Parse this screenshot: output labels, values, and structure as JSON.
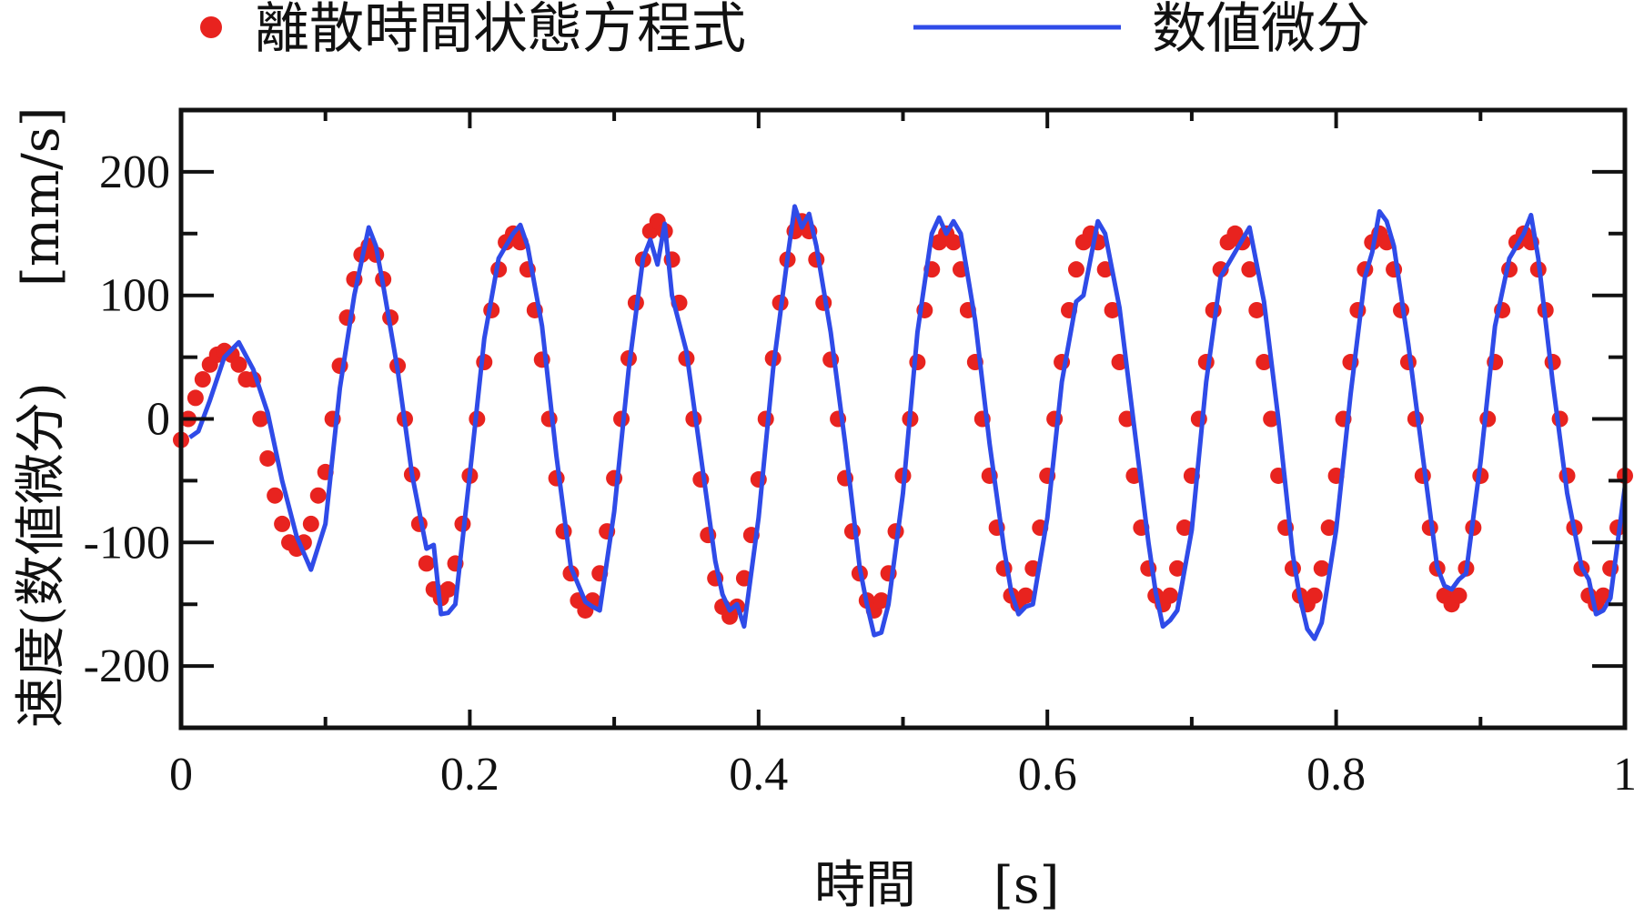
{
  "chart_data": {
    "type": "line",
    "title": "",
    "xlabel": "時間",
    "xunit": "[s]",
    "ylabel": "速度(数値微分)",
    "yunit": "[mm/s]",
    "xlim": [
      0,
      1
    ],
    "ylim": [
      -250,
      250
    ],
    "xticks": [
      0,
      0.2,
      0.4,
      0.6,
      0.8,
      1
    ],
    "xtick_labels": [
      "0",
      "0.2",
      "0.4",
      "0.6",
      "0.8",
      "1"
    ],
    "yticks": [
      -200,
      -100,
      0,
      100,
      200
    ],
    "ytick_labels": [
      "-200",
      "-100",
      "0",
      "100",
      "200"
    ],
    "grid": false,
    "legend_position": "top",
    "series": [
      {
        "name": "離散時間状態方程式",
        "style": "markers",
        "color": "#e8231f",
        "amplitude": [
          55,
          105,
          140,
          145,
          150,
          155,
          160,
          160,
          160,
          155,
          150,
          150,
          150,
          150,
          150,
          150,
          150,
          150,
          150,
          150
        ],
        "x": [],
        "y": []
      },
      {
        "name": "数値微分",
        "style": "line",
        "color": "#2f4be8",
        "x": [
          0.006,
          0.012,
          0.02,
          0.03,
          0.04,
          0.05,
          0.06,
          0.07,
          0.08,
          0.09,
          0.1,
          0.11,
          0.12,
          0.13,
          0.135,
          0.14,
          0.15,
          0.16,
          0.17,
          0.175,
          0.18,
          0.185,
          0.19,
          0.2,
          0.21,
          0.22,
          0.23,
          0.235,
          0.24,
          0.25,
          0.26,
          0.27,
          0.28,
          0.285,
          0.29,
          0.3,
          0.31,
          0.32,
          0.325,
          0.33,
          0.335,
          0.34,
          0.35,
          0.36,
          0.37,
          0.375,
          0.38,
          0.385,
          0.39,
          0.4,
          0.41,
          0.42,
          0.425,
          0.43,
          0.435,
          0.44,
          0.45,
          0.46,
          0.47,
          0.475,
          0.48,
          0.485,
          0.49,
          0.5,
          0.51,
          0.52,
          0.525,
          0.53,
          0.535,
          0.54,
          0.55,
          0.56,
          0.57,
          0.575,
          0.58,
          0.585,
          0.59,
          0.6,
          0.61,
          0.62,
          0.625,
          0.63,
          0.635,
          0.64,
          0.65,
          0.66,
          0.67,
          0.675,
          0.68,
          0.685,
          0.69,
          0.7,
          0.71,
          0.72,
          0.725,
          0.73,
          0.735,
          0.74,
          0.75,
          0.76,
          0.77,
          0.775,
          0.78,
          0.785,
          0.79,
          0.8,
          0.81,
          0.82,
          0.825,
          0.83,
          0.835,
          0.84,
          0.85,
          0.86,
          0.87,
          0.875,
          0.88,
          0.885,
          0.89,
          0.9,
          0.91,
          0.92,
          0.925,
          0.93,
          0.935,
          0.94,
          0.95,
          0.96,
          0.97,
          0.975,
          0.98,
          0.985,
          0.99,
          1.0
        ],
        "y": [
          -15,
          -10,
          15,
          50,
          62,
          40,
          5,
          -50,
          -95,
          -122,
          -85,
          25,
          100,
          155,
          140,
          108,
          40,
          -45,
          -105,
          -102,
          -158,
          -157,
          -150,
          -45,
          65,
          130,
          150,
          157,
          140,
          75,
          -30,
          -120,
          -148,
          -152,
          -155,
          -75,
          40,
          130,
          145,
          125,
          158,
          100,
          55,
          -30,
          -115,
          -142,
          -155,
          -150,
          -168,
          -80,
          40,
          130,
          172,
          155,
          166,
          140,
          70,
          -20,
          -120,
          -150,
          -175,
          -173,
          -150,
          -60,
          70,
          150,
          163,
          150,
          160,
          150,
          80,
          -20,
          -105,
          -140,
          -158,
          -152,
          -150,
          -80,
          30,
          95,
          100,
          130,
          160,
          150,
          90,
          -5,
          -100,
          -140,
          -168,
          -163,
          -155,
          -90,
          30,
          115,
          125,
          135,
          145,
          155,
          95,
          0,
          -110,
          -145,
          -170,
          -178,
          -165,
          -90,
          20,
          115,
          135,
          168,
          160,
          140,
          60,
          -30,
          -120,
          -135,
          -138,
          -130,
          -125,
          -35,
          75,
          130,
          140,
          150,
          165,
          130,
          30,
          -60,
          -120,
          -130,
          -158,
          -155,
          -145,
          -55
        ]
      }
    ]
  }
}
